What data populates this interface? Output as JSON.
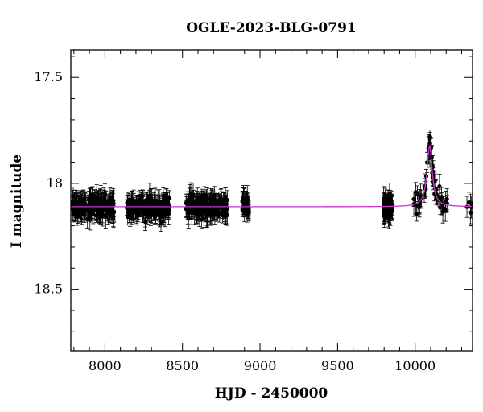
{
  "chart_data": {
    "type": "scatter",
    "title": "OGLE-2023-BLG-0791",
    "xlabel": "HJD - 2450000",
    "ylabel": "I magnitude",
    "xlim": [
      7780,
      10370
    ],
    "ylim": [
      18.79,
      17.37
    ],
    "y_inverted": true,
    "grid": false,
    "x_ticks": [
      8000,
      8500,
      9000,
      9500,
      10000
    ],
    "x_tick_labels": [
      "8000",
      "8500",
      "9000",
      "9500",
      "10000"
    ],
    "y_ticks": [
      17.5,
      18,
      18.5
    ],
    "y_tick_labels": [
      "17.5",
      "18",
      "18.5"
    ],
    "series": [
      {
        "kind": "points_with_errorbars",
        "color": "#000000",
        "baseline_mag": 18.11,
        "typical_error": 0.045,
        "seasons": [
          {
            "x_range": [
              7790,
              8060
            ],
            "y_range": [
              18.02,
              18.22
            ],
            "n_points": 190
          },
          {
            "x_range": [
              8140,
              8420
            ],
            "y_range": [
              18.02,
              18.22
            ],
            "n_points": 170
          },
          {
            "x_range": [
              8520,
              8790
            ],
            "y_range": [
              18.02,
              18.23
            ],
            "n_points": 170
          },
          {
            "x_range": [
              8885,
              8930
            ],
            "y_range": [
              18.04,
              18.19
            ],
            "n_points": 30
          },
          {
            "x_range": [
              9795,
              9855
            ],
            "y_range": [
              18.0,
              18.28
            ],
            "n_points": 80
          },
          {
            "x_range": [
              9990,
              10210
            ],
            "y_range": [
              17.78,
              18.18
            ],
            "n_points": 60
          },
          {
            "x_range": [
              10320,
              10365
            ],
            "y_range": [
              18.06,
              18.15
            ],
            "n_points": 5
          }
        ],
        "peak": {
          "x": 10095,
          "y": 17.78
        }
      },
      {
        "kind": "model_line",
        "color": "#cc33cc",
        "baseline_mag": 18.11,
        "peak_x": 10093,
        "peak_mag": 17.82,
        "width_days": 20
      }
    ]
  }
}
